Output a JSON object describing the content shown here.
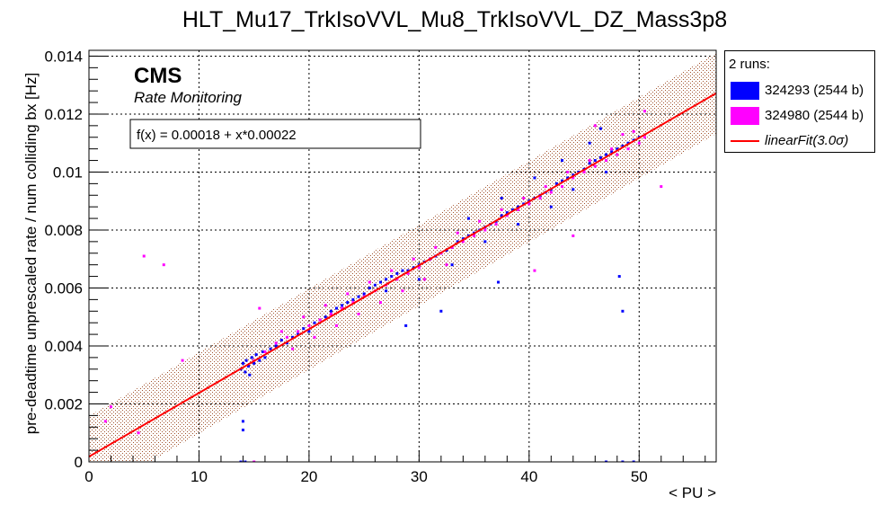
{
  "chart_data": {
    "type": "scatter",
    "title": "HLT_Mu17_TrkIsoVVL_Mu8_TrkIsoVVL_DZ_Mass3p8",
    "xlabel": "< PU >",
    "ylabel": "pre-deadtime unprescaled rate / num colliding bx [Hz]",
    "xlim": [
      0,
      57
    ],
    "ylim": [
      0,
      0.0142
    ],
    "xticks": [
      "0",
      "10",
      "20",
      "30",
      "40",
      "50"
    ],
    "yticks": [
      "0",
      "0.002",
      "0.004",
      "0.006",
      "0.008",
      "0.01",
      "0.012",
      "0.014"
    ],
    "grid": true,
    "legend_position": "right-outside-top",
    "annotations": {
      "cms_label": "CMS",
      "cms_sublabel": "Rate Monitoring",
      "fit_formula": "f(x) = 0.00018 + x*0.00022"
    },
    "legend": {
      "title": "2 runs:",
      "entries": [
        {
          "label": "324293 (2544 b)",
          "color": "#0000ff"
        },
        {
          "label": "324980 (2544 b)",
          "color": "#ff00ff"
        },
        {
          "label": "linearFit(3.0σ)",
          "color": "#ff0000",
          "italic": true
        }
      ]
    },
    "fit": {
      "intercept": 0.00018,
      "slope": 0.00022,
      "band_halfwidth": 0.0014,
      "x_range": [
        0,
        57
      ],
      "color": "#ff0000",
      "band_color": "#b06040"
    },
    "series": [
      {
        "name": "324293 (2544 b)",
        "color": "#0000ff",
        "points": [
          [
            13.8,
            0.0032
          ],
          [
            14.0,
            0.0034
          ],
          [
            14.2,
            0.0031
          ],
          [
            14.3,
            0.0035
          ],
          [
            14.5,
            0.0033
          ],
          [
            14.6,
            0.003
          ],
          [
            14.8,
            0.0036
          ],
          [
            15.0,
            0.0034
          ],
          [
            15.2,
            0.0037
          ],
          [
            15.5,
            0.0035
          ],
          [
            15.8,
            0.0038
          ],
          [
            16.0,
            0.0036
          ],
          [
            16.5,
            0.0039
          ],
          [
            17.0,
            0.004
          ],
          [
            17.5,
            0.0042
          ],
          [
            18.0,
            0.0041
          ],
          [
            18.5,
            0.0043
          ],
          [
            19.0,
            0.0044
          ],
          [
            19.5,
            0.0046
          ],
          [
            20.0,
            0.0045
          ],
          [
            20.5,
            0.0048
          ],
          [
            21.0,
            0.0049
          ],
          [
            21.5,
            0.005
          ],
          [
            22.0,
            0.0052
          ],
          [
            22.5,
            0.0053
          ],
          [
            23.0,
            0.0054
          ],
          [
            23.5,
            0.0055
          ],
          [
            24.0,
            0.0056
          ],
          [
            24.5,
            0.0057
          ],
          [
            25.0,
            0.0058
          ],
          [
            25.5,
            0.006
          ],
          [
            26.0,
            0.0061
          ],
          [
            26.5,
            0.0062
          ],
          [
            27.0,
            0.0063
          ],
          [
            27.5,
            0.0064
          ],
          [
            28.0,
            0.0065
          ],
          [
            28.5,
            0.0066
          ],
          [
            29.0,
            0.0066
          ],
          [
            29.5,
            0.0067
          ],
          [
            30.0,
            0.0068
          ],
          [
            30.5,
            0.0069
          ],
          [
            31.0,
            0.007
          ],
          [
            31.5,
            0.0071
          ],
          [
            32.0,
            0.0072
          ],
          [
            32.5,
            0.0073
          ],
          [
            33.0,
            0.0074
          ],
          [
            33.5,
            0.0076
          ],
          [
            34.0,
            0.0077
          ],
          [
            34.5,
            0.0078
          ],
          [
            35.0,
            0.0079
          ],
          [
            35.5,
            0.008
          ],
          [
            36.0,
            0.0081
          ],
          [
            36.5,
            0.0082
          ],
          [
            37.0,
            0.0083
          ],
          [
            37.5,
            0.0085
          ],
          [
            38.0,
            0.0086
          ],
          [
            38.5,
            0.0087
          ],
          [
            39.0,
            0.0088
          ],
          [
            39.5,
            0.0089
          ],
          [
            40.0,
            0.009
          ],
          [
            40.5,
            0.0091
          ],
          [
            41.0,
            0.0092
          ],
          [
            41.5,
            0.0093
          ],
          [
            42.0,
            0.0094
          ],
          [
            42.5,
            0.0096
          ],
          [
            43.0,
            0.0097
          ],
          [
            43.5,
            0.0098
          ],
          [
            44.0,
            0.0099
          ],
          [
            44.5,
            0.01
          ],
          [
            45.0,
            0.0101
          ],
          [
            45.5,
            0.0103
          ],
          [
            46.0,
            0.0104
          ],
          [
            46.5,
            0.0105
          ],
          [
            47.0,
            0.0106
          ],
          [
            47.5,
            0.0107
          ],
          [
            48.0,
            0.0108
          ],
          [
            48.5,
            0.0109
          ],
          [
            49.0,
            0.011
          ],
          [
            49.5,
            0.0111
          ],
          [
            50.0,
            0.0112
          ],
          [
            33.0,
            0.0068
          ],
          [
            36.0,
            0.0076
          ],
          [
            39.0,
            0.0082
          ],
          [
            42.0,
            0.0088
          ],
          [
            44.0,
            0.0094
          ],
          [
            47.0,
            0.01
          ],
          [
            30.0,
            0.0063
          ],
          [
            27.0,
            0.0059
          ],
          [
            46.5,
            0.0115
          ],
          [
            45.5,
            0.011
          ],
          [
            43.0,
            0.0104
          ],
          [
            40.5,
            0.0098
          ],
          [
            37.5,
            0.0091
          ],
          [
            34.5,
            0.0084
          ],
          [
            48.2,
            0.0064
          ],
          [
            48.5,
            0.0052
          ],
          [
            28.8,
            0.0047
          ],
          [
            32.0,
            0.0052
          ],
          [
            37.2,
            0.0062
          ],
          [
            14.0,
            0.0014
          ],
          [
            14.0,
            0.0011
          ],
          [
            47.0,
            0.0
          ],
          [
            48.5,
            0.0
          ],
          [
            49.5,
            0.0
          ],
          [
            13.8,
            0.0
          ],
          [
            14.2,
            0.0
          ]
        ]
      },
      {
        "name": "324980 (2544 b)",
        "color": "#ff00ff",
        "points": [
          [
            15.0,
            0.0035
          ],
          [
            16.0,
            0.0038
          ],
          [
            17.0,
            0.0041
          ],
          [
            18.0,
            0.0043
          ],
          [
            19.0,
            0.0045
          ],
          [
            20.0,
            0.0047
          ],
          [
            21.0,
            0.0049
          ],
          [
            22.0,
            0.0051
          ],
          [
            23.0,
            0.0053
          ],
          [
            24.0,
            0.0055
          ],
          [
            25.0,
            0.0057
          ],
          [
            26.0,
            0.0059
          ],
          [
            27.0,
            0.0061
          ],
          [
            28.0,
            0.0063
          ],
          [
            29.0,
            0.0065
          ],
          [
            30.0,
            0.0067
          ],
          [
            31.0,
            0.007
          ],
          [
            32.0,
            0.0072
          ],
          [
            33.0,
            0.0074
          ],
          [
            34.0,
            0.0076
          ],
          [
            35.0,
            0.0078
          ],
          [
            36.0,
            0.008
          ],
          [
            37.0,
            0.0082
          ],
          [
            38.0,
            0.0085
          ],
          [
            39.0,
            0.0087
          ],
          [
            40.0,
            0.0089
          ],
          [
            41.0,
            0.0091
          ],
          [
            42.0,
            0.0093
          ],
          [
            43.0,
            0.0095
          ],
          [
            44.0,
            0.0098
          ],
          [
            45.0,
            0.01
          ],
          [
            46.0,
            0.0102
          ],
          [
            47.0,
            0.0104
          ],
          [
            48.0,
            0.0106
          ],
          [
            49.0,
            0.0108
          ],
          [
            50.0,
            0.011
          ],
          [
            50.5,
            0.0112
          ],
          [
            49.5,
            0.0114
          ],
          [
            48.5,
            0.0113
          ],
          [
            17.5,
            0.0045
          ],
          [
            19.5,
            0.005
          ],
          [
            21.5,
            0.0054
          ],
          [
            23.5,
            0.0058
          ],
          [
            25.5,
            0.0062
          ],
          [
            27.5,
            0.0066
          ],
          [
            29.5,
            0.007
          ],
          [
            31.5,
            0.0074
          ],
          [
            33.5,
            0.0079
          ],
          [
            35.5,
            0.0083
          ],
          [
            37.5,
            0.0087
          ],
          [
            39.5,
            0.0091
          ],
          [
            41.5,
            0.0095
          ],
          [
            43.5,
            0.01
          ],
          [
            45.5,
            0.0104
          ],
          [
            47.5,
            0.0108
          ],
          [
            18.5,
            0.0039
          ],
          [
            20.5,
            0.0043
          ],
          [
            22.5,
            0.0047
          ],
          [
            24.5,
            0.0051
          ],
          [
            26.5,
            0.0055
          ],
          [
            28.5,
            0.0059
          ],
          [
            30.5,
            0.0063
          ],
          [
            32.5,
            0.0068
          ],
          [
            5.0,
            0.0071
          ],
          [
            6.8,
            0.0068
          ],
          [
            52.0,
            0.0095
          ],
          [
            40.5,
            0.0066
          ],
          [
            44.0,
            0.0078
          ],
          [
            15.5,
            0.0053
          ],
          [
            8.5,
            0.0035
          ],
          [
            2.0,
            0.0019
          ],
          [
            4.5,
            0.001
          ],
          [
            1.5,
            0.0014
          ],
          [
            50.5,
            0.0121
          ],
          [
            46.0,
            0.0116
          ],
          [
            15.0,
            0.0
          ]
        ]
      }
    ]
  }
}
